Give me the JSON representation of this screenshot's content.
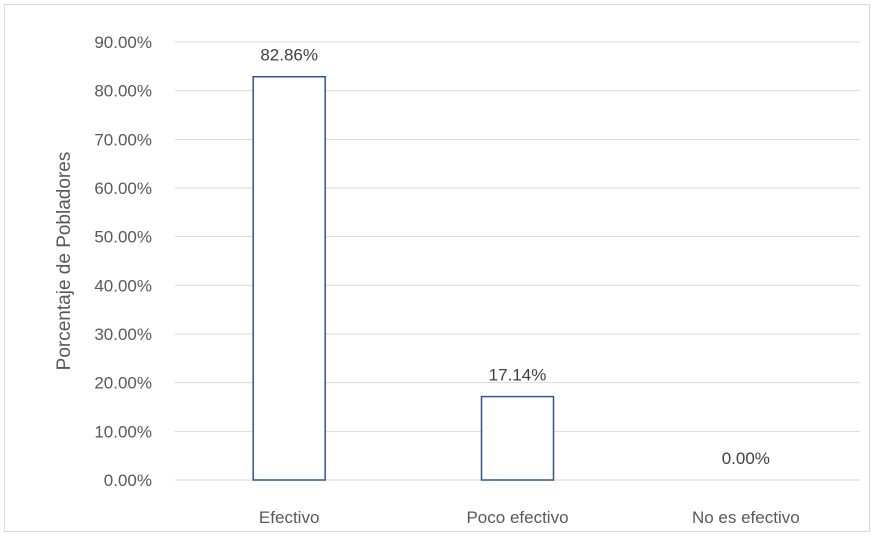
{
  "chart_data": {
    "type": "bar",
    "categories": [
      "Efectivo",
      "Poco efectivo",
      "No es efectivo"
    ],
    "values": [
      82.86,
      17.14,
      0.0
    ],
    "data_labels": [
      "82.86%",
      "17.14%",
      "0.00%"
    ],
    "title": "",
    "xlabel": "",
    "ylabel": "Porcentaje de Pobladores",
    "ylim": [
      0,
      90
    ],
    "yticks": [
      0,
      10,
      20,
      30,
      40,
      50,
      60,
      70,
      80,
      90
    ],
    "ytick_labels": [
      "0.00%",
      "10.00%",
      "20.00%",
      "30.00%",
      "40.00%",
      "50.00%",
      "60.00%",
      "70.00%",
      "80.00%",
      "90.00%"
    ],
    "grid": true,
    "legend": "none",
    "colors": {
      "bar_fill": "#ffffff",
      "bar_edge": "#2f5597",
      "grid": "#d9d9d9",
      "text": "#595959"
    }
  }
}
